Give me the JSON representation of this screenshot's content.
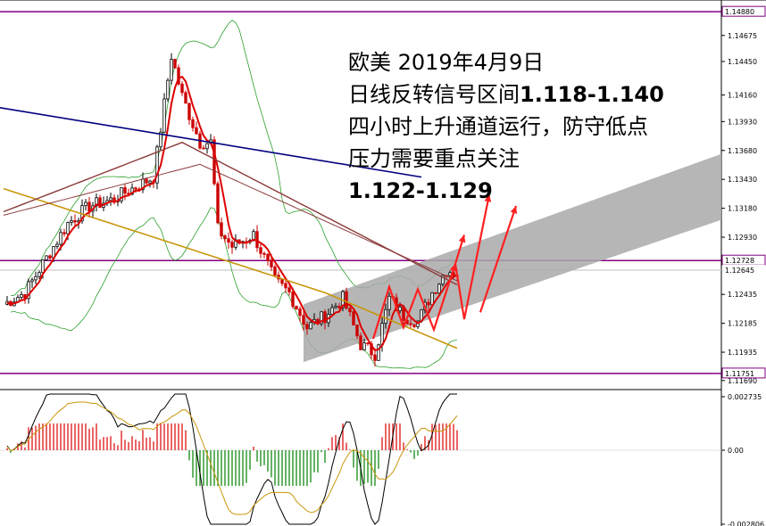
{
  "chart_data": {
    "type": "candlestick",
    "annotation": {
      "line1": "欧美 2019年4月9日",
      "line2_text": "日线反转信号区间",
      "line2_range": "1.118-1.140",
      "line3": "四小时上升通道运行，防守低点",
      "line4": "压力需要重点关注",
      "line5": "1.122-1.129"
    },
    "price_axis": {
      "ticks": [
        "1.14675",
        "1.14450",
        "1.14160",
        "1.13930",
        "1.13680",
        "1.13430",
        "1.13180",
        "1.12930",
        "1.12435",
        "1.12185",
        "1.11935",
        "1.11690"
      ],
      "ylim": [
        1.1165,
        1.1492
      ]
    },
    "price_tags": {
      "top": "1.14880",
      "resistance": "1.12728",
      "current": "1.12645",
      "bottom": "1.11751"
    },
    "indicator_axis": {
      "ticks": [
        "0.002735",
        "0.00",
        "-0.002806"
      ]
    },
    "colors": {
      "bull": "#000000",
      "bear": "#cc0000",
      "level_line": "#800080",
      "trendline": "#00007f",
      "ma_red": "#dd0000",
      "ma_gold": "#c8960a",
      "ma_brown": "#8b3a3a",
      "bollinger": "#2ca02c",
      "channel": "#a9a9a9",
      "arrows": "#ff2020",
      "macd_pos": "#dd0000",
      "macd_neg": "#008000",
      "macd_line": "#000000",
      "signal_line": "#c8960a"
    }
  }
}
